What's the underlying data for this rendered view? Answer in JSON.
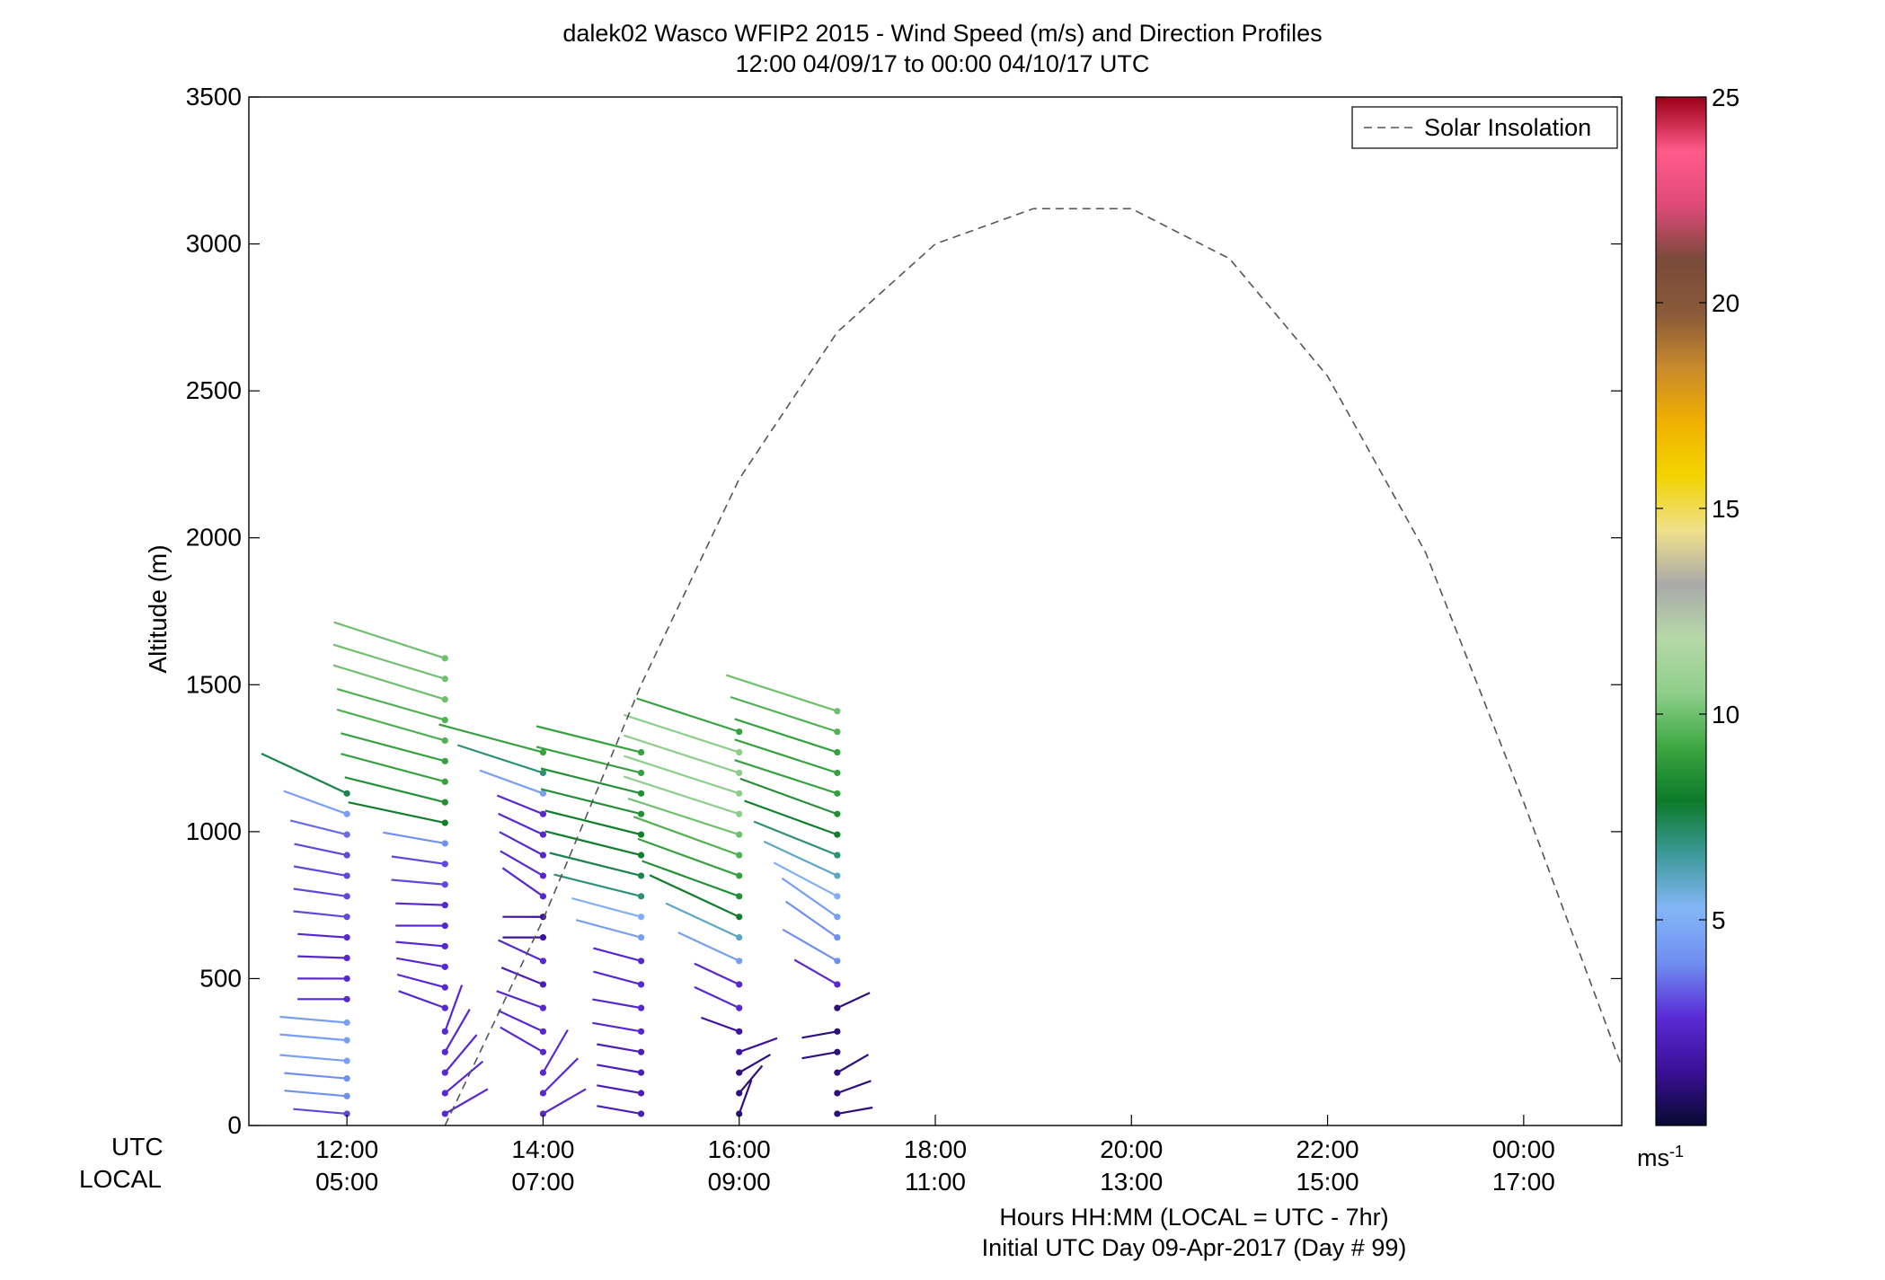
{
  "title": "dalek02 Wasco WFIP2 2015 - Wind Speed (m/s) and Direction Profiles",
  "subtitle": "12:00 04/09/17 to 00:00 04/10/17  UTC",
  "xaxis": {
    "row_labels": {
      "utc": "UTC",
      "local": "LOCAL"
    },
    "utc_ticks": [
      "12:00",
      "14:00",
      "16:00",
      "18:00",
      "20:00",
      "22:00",
      "00:00"
    ],
    "local_ticks": [
      "05:00",
      "07:00",
      "09:00",
      "11:00",
      "13:00",
      "15:00",
      "17:00"
    ],
    "label_line1": "Hours HH:MM  (LOCAL = UTC - 7hr)",
    "label_line2": "Initial UTC Day 09-Apr-2017 (Day # 99)"
  },
  "yaxis": {
    "label": "Altitude (m)",
    "ticks": [
      "0",
      "500",
      "1000",
      "1500",
      "2000",
      "2500",
      "3000",
      "3500"
    ]
  },
  "legend": {
    "solar_label": "Solar Insolation"
  },
  "colorbar": {
    "ticks": [
      "5",
      "10",
      "15",
      "20",
      "25"
    ],
    "unit": "ms",
    "unit_sup": "-1",
    "stops": [
      "#0a0a33",
      "#3a1096",
      "#5a2bd6",
      "#6f8ef0",
      "#84b6f7",
      "#3d9a9a",
      "#0c7a2a",
      "#3ea843",
      "#8fcf8b",
      "#b6d8a8",
      "#a9a9a9",
      "#f0e08a",
      "#f2d400",
      "#f0b000",
      "#c88a2c",
      "#8a5a3a",
      "#7a4a3a",
      "#e04a7a",
      "#ff5a8a",
      "#9a0016"
    ]
  },
  "chart_data": {
    "type": "wind profile (barbs by altitude, colored by speed)",
    "title": "dalek02 Wasco WFIP2 2015 - Wind Speed (m/s) and Direction Profiles",
    "xlabel": "Hours HH:MM  (LOCAL = UTC - 7hr)",
    "ylabel": "Altitude (m)",
    "xlim": [
      11,
      25
    ],
    "ylim": [
      0,
      3500
    ],
    "colorbar_range": [
      0,
      25
    ],
    "solar_insolation_curve": {
      "x": [
        13.0,
        14.0,
        15.0,
        16.0,
        17.0,
        18.0,
        19.0,
        20.0,
        21.0,
        22.0,
        23.0,
        24.0,
        25.0
      ],
      "y": [
        0,
        700,
        1500,
        2200,
        2700,
        3000,
        3120,
        3120,
        2950,
        2550,
        1950,
        1100,
        200
      ]
    },
    "profiles": [
      {
        "time": 12,
        "heights": [
          40,
          100,
          160,
          220,
          290,
          350,
          430,
          500,
          570,
          640,
          710,
          780,
          850,
          920,
          990,
          1060,
          1130
        ],
        "speeds": [
          3,
          4,
          4,
          4.5,
          4.5,
          4.5,
          2.5,
          2.5,
          2.5,
          2.5,
          3,
          3,
          3,
          3,
          3.5,
          4.5,
          7.5
        ],
        "dir_deg": [
          95,
          95,
          95,
          95,
          95,
          95,
          90,
          90,
          92,
          94,
          96,
          98,
          100,
          102,
          104,
          110,
          115
        ]
      },
      {
        "time": 13,
        "heights": [
          40,
          110,
          180,
          250,
          320,
          400,
          470,
          540,
          610,
          680,
          750,
          820,
          890,
          960,
          1030,
          1100,
          1170,
          1240,
          1310,
          1380,
          1450,
          1520,
          1590
        ],
        "speeds": [
          2.5,
          2.5,
          2.5,
          2.5,
          2.5,
          2.5,
          2.5,
          2.5,
          2.5,
          2.5,
          2.5,
          3,
          3,
          4,
          8,
          8.5,
          9,
          9,
          9.5,
          9.5,
          10,
          10,
          10
        ],
        "dir_deg": [
          240,
          230,
          220,
          210,
          200,
          110,
          105,
          100,
          95,
          90,
          92,
          95,
          98,
          100,
          102,
          104,
          105,
          105,
          106,
          106,
          107,
          107,
          108
        ]
      },
      {
        "time": 14,
        "heights": [
          40,
          110,
          180,
          250,
          320,
          400,
          480,
          560,
          640,
          710,
          780,
          850,
          920,
          990,
          1060,
          1130,
          1200,
          1270
        ],
        "speeds": [
          2.5,
          2.5,
          2.5,
          2.5,
          2.5,
          2.5,
          2,
          2.5,
          1.5,
          1.5,
          2.5,
          2.5,
          2.5,
          2.5,
          2.5,
          4.5,
          7,
          9
        ],
        "dir_deg": [
          240,
          225,
          210,
          120,
          115,
          110,
          112,
          115,
          90,
          90,
          125,
          120,
          118,
          115,
          112,
          110,
          108,
          105
        ]
      },
      {
        "time": 15,
        "heights": [
          40,
          110,
          180,
          250,
          320,
          400,
          480,
          560,
          640,
          710,
          780,
          850,
          920,
          990,
          1060,
          1130,
          1200,
          1270
        ],
        "speeds": [
          2,
          2,
          2,
          2,
          2.5,
          2.5,
          2.5,
          2.5,
          4.5,
          5,
          7,
          7.5,
          8,
          8,
          8.5,
          8.5,
          9,
          9
        ],
        "dir_deg": [
          100,
          100,
          100,
          100,
          100,
          100,
          105,
          105,
          105,
          105,
          104,
          104,
          104,
          104,
          104,
          104,
          104,
          104
        ]
      },
      {
        "time": 16,
        "heights": [
          40,
          110,
          180,
          250,
          320,
          400,
          480,
          560,
          640,
          710,
          780,
          850,
          920,
          990,
          1060,
          1130,
          1200,
          1270,
          1340
        ],
        "speeds": [
          1,
          1,
          1,
          1.5,
          1.5,
          2.5,
          2.5,
          4.5,
          6,
          8,
          8.5,
          9,
          9.5,
          10,
          10.5,
          10.5,
          10.5,
          10.5,
          9
        ],
        "dir_deg": [
          200,
          220,
          240,
          250,
          110,
          115,
          115,
          115,
          115,
          115,
          110,
          110,
          110,
          108,
          108,
          108,
          108,
          108,
          108
        ]
      },
      {
        "time": 17,
        "heights": [
          40,
          110,
          180,
          250,
          320,
          400,
          480,
          560,
          640,
          710,
          780,
          850,
          920,
          990,
          1060,
          1130,
          1200,
          1270,
          1340,
          1410
        ],
        "speeds": [
          1,
          1,
          1,
          1,
          1,
          1,
          2.5,
          4,
          4,
          4.5,
          5,
          6,
          7,
          8,
          8.5,
          9,
          9,
          9,
          9.5,
          10
        ],
        "dir_deg": [
          260,
          250,
          240,
          80,
          80,
          245,
          120,
          120,
          125,
          125,
          118,
          115,
          112,
          110,
          110,
          108,
          108,
          108,
          108,
          108
        ]
      }
    ]
  }
}
